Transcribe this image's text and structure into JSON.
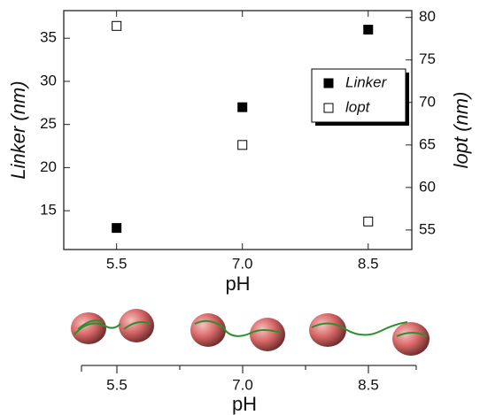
{
  "chart_data": {
    "type": "scatter",
    "xlabel": "pH",
    "ylabel": "Linker (nm)",
    "y2label": "lopt (nm)",
    "xlim": [
      4.87,
      9.02
    ],
    "xticks": [
      5.5,
      {
        "value": 7,
        "label": "7.0"
      },
      8.5
    ],
    "ylim": [
      10.5,
      38.2
    ],
    "yticks": [
      15,
      20,
      25,
      30,
      35
    ],
    "y2lim": [
      52.7,
      80.8
    ],
    "y2ticks": [
      55,
      60,
      65,
      70,
      75,
      80
    ],
    "legend": "upper right",
    "series": [
      {
        "name": "Linker",
        "color": "#000000",
        "marker": "filled-square",
        "x": [
          5.5,
          7,
          8.5
        ],
        "values": [
          13,
          27,
          36
        ]
      },
      {
        "name": "lopt",
        "color": "#000000",
        "marker": "open-square",
        "axis": "y2",
        "x": [
          5.5,
          7,
          8.5
        ],
        "values": [
          79,
          65,
          56
        ]
      }
    ]
  },
  "illustration": {
    "xticks": [
      "5.5",
      "7.0",
      "8.5"
    ],
    "xlabel": "pH"
  }
}
